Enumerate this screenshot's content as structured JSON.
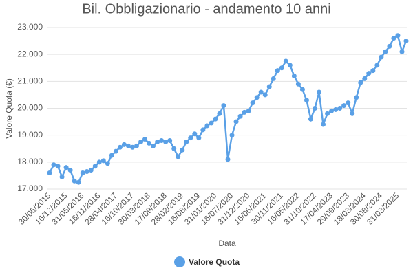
{
  "chart_data": {
    "type": "line",
    "title": "Bil. Obbligazionario - andamento 10 anni",
    "x_label": "Data",
    "y_label": "Valore Quota (€)",
    "categories": [
      "30/06/2015",
      null,
      null,
      null,
      "16/12/2015",
      null,
      null,
      null,
      "31/05/2016",
      null,
      null,
      null,
      "16/11/2016",
      null,
      null,
      null,
      "28/04/2017",
      null,
      null,
      null,
      "16/10/2017",
      null,
      null,
      null,
      "30/03/2018",
      null,
      null,
      null,
      "17/09/2018",
      null,
      null,
      null,
      "28/02/2019",
      null,
      null,
      null,
      "16/08/2019",
      null,
      null,
      null,
      "31/01/2020",
      null,
      null,
      null,
      "16/07/2020",
      null,
      null,
      null,
      "31/12/2020",
      null,
      null,
      null,
      "16/06/2021",
      null,
      null,
      null,
      "30/11/2021",
      null,
      null,
      null,
      "16/05/2022",
      null,
      null,
      null,
      "31/10/2022",
      null,
      null,
      null,
      "17/04/2023",
      null,
      null,
      null,
      "29/09/2023",
      null,
      null,
      null,
      "18/03/2024",
      null,
      null,
      null,
      "30/08/2024",
      null,
      null,
      null,
      "31/03/2025",
      null,
      null
    ],
    "series": [
      {
        "name": "Valore Quota",
        "color": "#5aa0e6",
        "values": [
          17.6,
          17.9,
          17.85,
          17.45,
          17.8,
          17.7,
          17.3,
          17.25,
          17.6,
          17.65,
          17.7,
          17.85,
          18.0,
          18.05,
          17.95,
          18.25,
          18.4,
          18.55,
          18.65,
          18.6,
          18.55,
          18.6,
          18.75,
          18.85,
          18.7,
          18.6,
          18.75,
          18.8,
          18.75,
          18.8,
          18.5,
          18.2,
          18.45,
          18.75,
          18.9,
          19.05,
          18.9,
          19.2,
          19.35,
          19.45,
          19.6,
          19.8,
          20.1,
          18.1,
          19.0,
          19.5,
          19.7,
          19.85,
          19.9,
          20.2,
          20.4,
          20.6,
          20.5,
          20.8,
          21.1,
          21.4,
          21.5,
          21.75,
          21.6,
          21.2,
          20.9,
          20.7,
          20.3,
          19.6,
          20.0,
          20.6,
          19.4,
          19.8,
          19.9,
          19.95,
          20.0,
          20.1,
          20.2,
          19.8,
          20.4,
          20.95,
          21.1,
          21.3,
          21.4,
          21.6,
          21.9,
          22.1,
          22.3,
          22.6,
          22.7,
          22.1,
          22.5
        ]
      }
    ],
    "ylim": [
      17,
      23
    ],
    "yticks": [
      {
        "value": 17,
        "label": "17.000"
      },
      {
        "value": 18,
        "label": "18.000"
      },
      {
        "value": 19,
        "label": "19.000"
      },
      {
        "value": 20,
        "label": "20.000"
      },
      {
        "value": 21,
        "label": "21.000"
      },
      {
        "value": 22,
        "label": "22.000"
      },
      {
        "value": 23,
        "label": "23.000"
      }
    ],
    "grid": true
  }
}
